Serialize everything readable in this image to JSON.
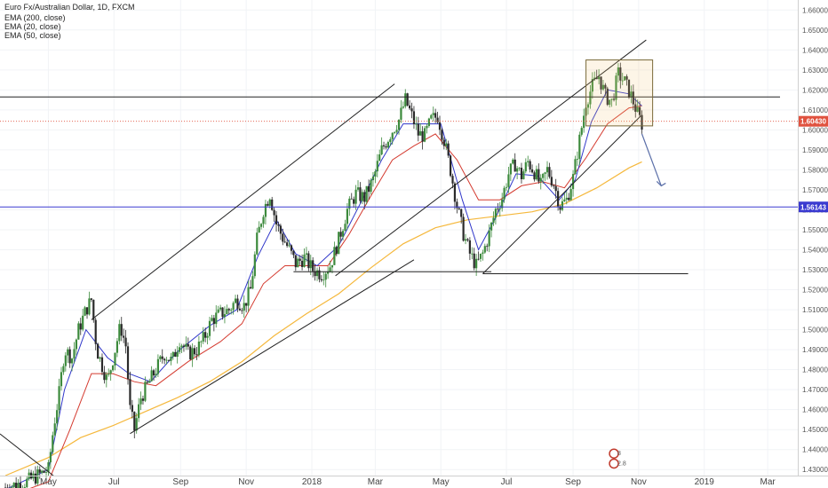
{
  "header": {
    "title": "Euro Fx/Australian Dollar, 1D, FXCM",
    "indicators": [
      "EMA (200, close)",
      "EMA (20, close)",
      "EMA (50, close)"
    ]
  },
  "chart_data": {
    "type": "candlestick",
    "ylim": [
      1.427,
      1.665
    ],
    "y_ticks": [
      "1.66000",
      "1.65000",
      "1.64000",
      "1.63000",
      "1.62000",
      "1.61000",
      "1.60000",
      "1.59000",
      "1.58000",
      "1.57000",
      "1.56000",
      "1.55000",
      "1.54000",
      "1.53000",
      "1.52000",
      "1.51000",
      "1.50000",
      "1.49000",
      "1.48000",
      "1.47000",
      "1.46000",
      "1.45000",
      "1.44000",
      "1.43000"
    ],
    "y_tick_values": [
      1.66,
      1.65,
      1.64,
      1.63,
      1.62,
      1.61,
      1.6,
      1.59,
      1.58,
      1.57,
      1.56,
      1.55,
      1.54,
      1.53,
      1.52,
      1.51,
      1.5,
      1.49,
      1.48,
      1.47,
      1.46,
      1.45,
      1.44,
      1.43
    ],
    "x_ticks": [
      {
        "label": "May",
        "day": 0
      },
      {
        "label": "Jul",
        "day": 61
      },
      {
        "label": "Sep",
        "day": 123
      },
      {
        "label": "Nov",
        "day": 184
      },
      {
        "label": "2018",
        "day": 245
      },
      {
        "label": "Mar",
        "day": 304
      },
      {
        "label": "May",
        "day": 365
      },
      {
        "label": "Jul",
        "day": 426
      },
      {
        "label": "Sep",
        "day": 488
      },
      {
        "label": "Nov",
        "day": 549
      },
      {
        "label": "2019",
        "day": 610
      },
      {
        "label": "Mar",
        "day": 669
      }
    ],
    "xlim": [
      -45,
      697
    ],
    "price_path": [
      [
        -40,
        1.421
      ],
      [
        -20,
        1.424
      ],
      [
        0,
        1.43
      ],
      [
        5,
        1.452
      ],
      [
        10,
        1.468
      ],
      [
        15,
        1.49
      ],
      [
        22,
        1.486
      ],
      [
        28,
        1.5
      ],
      [
        35,
        1.51
      ],
      [
        40,
        1.515
      ],
      [
        45,
        1.49
      ],
      [
        50,
        1.482
      ],
      [
        55,
        1.474
      ],
      [
        62,
        1.49
      ],
      [
        67,
        1.502
      ],
      [
        72,
        1.492
      ],
      [
        76,
        1.46
      ],
      [
        80,
        1.45
      ],
      [
        86,
        1.466
      ],
      [
        92,
        1.472
      ],
      [
        100,
        1.48
      ],
      [
        108,
        1.488
      ],
      [
        115,
        1.484
      ],
      [
        122,
        1.495
      ],
      [
        130,
        1.488
      ],
      [
        138,
        1.49
      ],
      [
        145,
        1.496
      ],
      [
        152,
        1.505
      ],
      [
        160,
        1.508
      ],
      [
        168,
        1.51
      ],
      [
        175,
        1.515
      ],
      [
        182,
        1.512
      ],
      [
        188,
        1.52
      ],
      [
        194,
        1.545
      ],
      [
        200,
        1.56
      ],
      [
        206,
        1.568
      ],
      [
        212,
        1.553
      ],
      [
        218,
        1.546
      ],
      [
        224,
        1.54
      ],
      [
        230,
        1.533
      ],
      [
        238,
        1.536
      ],
      [
        246,
        1.53
      ],
      [
        254,
        1.528
      ],
      [
        262,
        1.532
      ],
      [
        270,
        1.545
      ],
      [
        278,
        1.56
      ],
      [
        286,
        1.568
      ],
      [
        294,
        1.566
      ],
      [
        302,
        1.575
      ],
      [
        310,
        1.59
      ],
      [
        318,
        1.598
      ],
      [
        326,
        1.605
      ],
      [
        332,
        1.615
      ],
      [
        338,
        1.607
      ],
      [
        344,
        1.598
      ],
      [
        350,
        1.597
      ],
      [
        356,
        1.605
      ],
      [
        362,
        1.607
      ],
      [
        368,
        1.595
      ],
      [
        374,
        1.58
      ],
      [
        380,
        1.562
      ],
      [
        386,
        1.548
      ],
      [
        392,
        1.538
      ],
      [
        398,
        1.532
      ],
      [
        404,
        1.538
      ],
      [
        410,
        1.548
      ],
      [
        416,
        1.56
      ],
      [
        422,
        1.566
      ],
      [
        428,
        1.578
      ],
      [
        434,
        1.583
      ],
      [
        440,
        1.577
      ],
      [
        446,
        1.584
      ],
      [
        452,
        1.579
      ],
      [
        458,
        1.572
      ],
      [
        464,
        1.58
      ],
      [
        470,
        1.573
      ],
      [
        476,
        1.562
      ],
      [
        482,
        1.565
      ],
      [
        488,
        1.576
      ],
      [
        494,
        1.595
      ],
      [
        500,
        1.614
      ],
      [
        506,
        1.622
      ],
      [
        512,
        1.627
      ],
      [
        518,
        1.617
      ],
      [
        524,
        1.614
      ],
      [
        530,
        1.628
      ],
      [
        536,
        1.624
      ],
      [
        542,
        1.617
      ],
      [
        548,
        1.608
      ],
      [
        552,
        1.603
      ]
    ],
    "ema200_path": [
      [
        -40,
        1.427
      ],
      [
        0,
        1.436
      ],
      [
        30,
        1.446
      ],
      [
        60,
        1.452
      ],
      [
        90,
        1.459
      ],
      [
        120,
        1.466
      ],
      [
        150,
        1.474
      ],
      [
        180,
        1.484
      ],
      [
        210,
        1.497
      ],
      [
        240,
        1.508
      ],
      [
        270,
        1.518
      ],
      [
        300,
        1.531
      ],
      [
        330,
        1.543
      ],
      [
        360,
        1.551
      ],
      [
        390,
        1.555
      ],
      [
        420,
        1.557
      ],
      [
        450,
        1.559
      ],
      [
        480,
        1.563
      ],
      [
        510,
        1.571
      ],
      [
        540,
        1.581
      ],
      [
        552,
        1.584
      ]
    ],
    "ema50_path": [
      [
        -40,
        1.416
      ],
      [
        0,
        1.424
      ],
      [
        20,
        1.45
      ],
      [
        40,
        1.478
      ],
      [
        60,
        1.478
      ],
      [
        80,
        1.474
      ],
      [
        100,
        1.472
      ],
      [
        130,
        1.484
      ],
      [
        160,
        1.494
      ],
      [
        180,
        1.503
      ],
      [
        200,
        1.523
      ],
      [
        220,
        1.532
      ],
      [
        240,
        1.532
      ],
      [
        260,
        1.532
      ],
      [
        280,
        1.548
      ],
      [
        300,
        1.567
      ],
      [
        320,
        1.585
      ],
      [
        340,
        1.592
      ],
      [
        360,
        1.598
      ],
      [
        380,
        1.585
      ],
      [
        400,
        1.565
      ],
      [
        420,
        1.565
      ],
      [
        440,
        1.572
      ],
      [
        460,
        1.574
      ],
      [
        480,
        1.571
      ],
      [
        500,
        1.586
      ],
      [
        520,
        1.603
      ],
      [
        540,
        1.611
      ],
      [
        552,
        1.612
      ]
    ],
    "ema20_path": [
      [
        -40,
        1.42
      ],
      [
        0,
        1.43
      ],
      [
        15,
        1.47
      ],
      [
        35,
        1.5
      ],
      [
        55,
        1.486
      ],
      [
        75,
        1.478
      ],
      [
        95,
        1.474
      ],
      [
        120,
        1.489
      ],
      [
        150,
        1.502
      ],
      [
        175,
        1.51
      ],
      [
        195,
        1.537
      ],
      [
        212,
        1.555
      ],
      [
        230,
        1.538
      ],
      [
        250,
        1.532
      ],
      [
        270,
        1.542
      ],
      [
        290,
        1.563
      ],
      [
        310,
        1.585
      ],
      [
        330,
        1.603
      ],
      [
        345,
        1.603
      ],
      [
        365,
        1.603
      ],
      [
        385,
        1.565
      ],
      [
        400,
        1.54
      ],
      [
        415,
        1.555
      ],
      [
        435,
        1.578
      ],
      [
        455,
        1.577
      ],
      [
        475,
        1.565
      ],
      [
        490,
        1.575
      ],
      [
        505,
        1.604
      ],
      [
        520,
        1.62
      ],
      [
        540,
        1.618
      ],
      [
        552,
        1.612
      ]
    ],
    "current_price": "1.60430",
    "current_price_value": 1.6043,
    "support_price": "1.56143",
    "support_price_value": 1.56143,
    "resistance_level": 1.6165,
    "channel1": {
      "lower": [
        [
          76,
          1.448
        ],
        [
          340,
          1.535
        ]
      ],
      "upper": [
        [
          40,
          1.505
        ],
        [
          322,
          1.623
        ]
      ]
    },
    "channel2": {
      "lower": [
        [
          404,
          1.528
        ],
        [
          551,
          1.607
        ]
      ],
      "upper": [
        [
          267,
          1.527
        ],
        [
          556,
          1.645
        ]
      ]
    },
    "base_line": {
      "from": [
        228,
        1.529
      ],
      "to": [
        412,
        1.529
      ]
    },
    "lower_base_line": {
      "from": [
        404,
        1.528
      ],
      "to": [
        595,
        1.528
      ]
    },
    "consolidation_box": {
      "x0": 500,
      "x1": 562,
      "y0": 1.602,
      "y1": 1.635
    },
    "forecast_arrow": {
      "from": [
        552,
        1.598
      ],
      "to": [
        570,
        1.572
      ]
    },
    "markers": [
      {
        "label": "8",
        "day": 526,
        "price": 1.438,
        "color": "#c0392b"
      },
      {
        "label": "2.8",
        "day": 526,
        "price": 1.433,
        "color": "#c0392b"
      }
    ]
  },
  "colors": {
    "up": "#3c8a3c",
    "down": "#2a2a2a",
    "ema20": "#2f36c9",
    "ema50": "#d43a2f",
    "ema200": "#f5b83c",
    "support_line": "#3a3ad0",
    "price_label_bg": "#e0523f",
    "support_label_bg": "#3a3ad0"
  }
}
